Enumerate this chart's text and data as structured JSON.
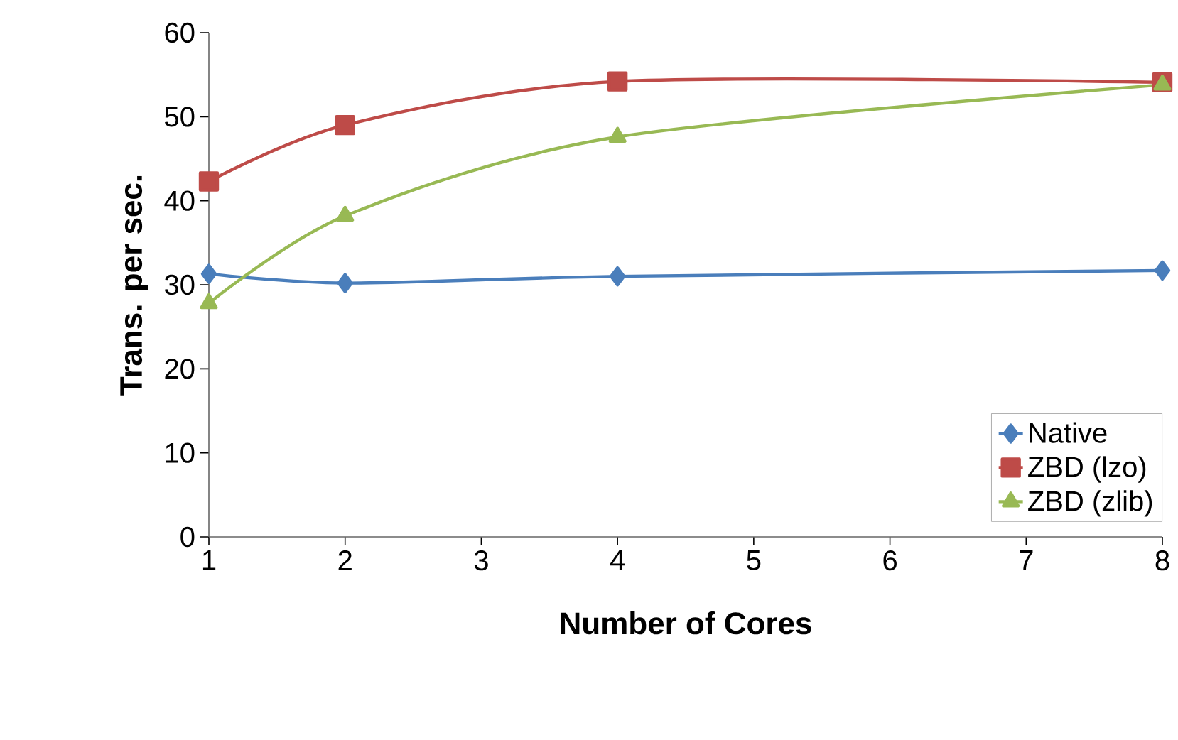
{
  "chart_data": {
    "type": "line",
    "xlabel": "Number of Cores",
    "ylabel": "Trans. per sec.",
    "xlim": [
      1,
      8
    ],
    "xticks": [
      1,
      2,
      3,
      4,
      5,
      6,
      7,
      8
    ],
    "ylim": [
      0,
      60
    ],
    "yticks": [
      0,
      10,
      20,
      30,
      40,
      50,
      60
    ],
    "grid": false,
    "legend": "bottom right",
    "series": [
      {
        "name": "Native",
        "color": "#4a7ebb",
        "marker": "diamond",
        "x": [
          1,
          2,
          4,
          8
        ],
        "values": [
          31.3,
          30.2,
          31,
          31.7
        ]
      },
      {
        "name": "ZBD (lzo)",
        "color": "#be4b48",
        "marker": "square",
        "x": [
          1,
          2,
          4,
          8
        ],
        "values": [
          42.3,
          49,
          54.2,
          54.1
        ]
      },
      {
        "name": "ZBD (zlib)",
        "color": "#98b954",
        "marker": "triangle",
        "x": [
          1,
          2,
          4,
          8
        ],
        "values": [
          27.8,
          38.2,
          47.6,
          53.8
        ]
      }
    ]
  }
}
